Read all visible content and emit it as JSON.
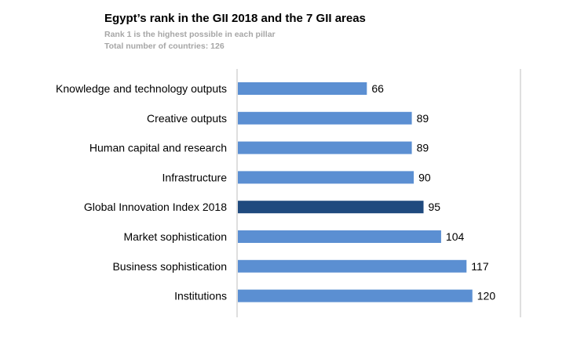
{
  "title": "Egypt’s rank in the GII 2018 and the 7 GII areas",
  "subtitle_lines": [
    "Rank 1 is the highest possible in each pillar",
    "Total number of countries: 126"
  ],
  "colors": {
    "bar_pillar": "#5b8fd2",
    "bar_index": "#1f4a7e",
    "axis": "#bfbfbf"
  },
  "chart_data": {
    "type": "bar",
    "orientation": "horizontal",
    "categories": [
      "Knowledge and technology outputs",
      "Creative outputs",
      "Human capital and research",
      "Infrastructure",
      "Global Innovation Index 2018",
      "Market sophistication",
      "Business sophistication",
      "Institutions"
    ],
    "values": [
      66,
      89,
      89,
      90,
      95,
      104,
      117,
      120
    ],
    "highlight_category": "Global Innovation Index 2018",
    "xlim": [
      0,
      145
    ],
    "data_labels": true,
    "grid": false,
    "legend": "none"
  }
}
